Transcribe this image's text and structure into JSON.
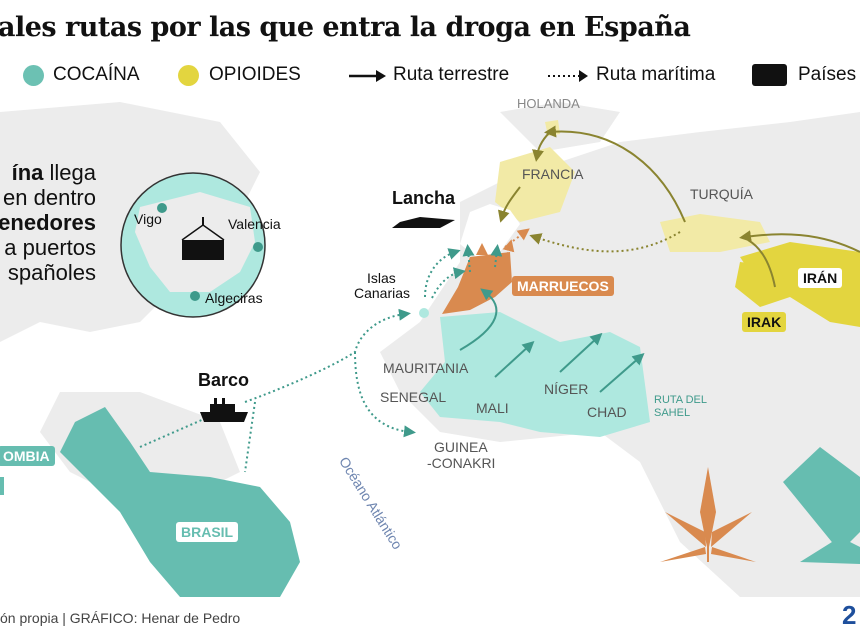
{
  "title": "ales rutas por las que entra la droga en España",
  "legend": {
    "cocaina": {
      "label": "COCAÍNA",
      "color": "#6cc1b3"
    },
    "opioides": {
      "label": "OPIOIDES",
      "color": "#e3d53f"
    },
    "land_route": {
      "label": "Ruta terrestre",
      "icon": "solid-arrow-icon"
    },
    "sea_route": {
      "label": "Ruta marítima",
      "icon": "dotted-arrow-icon"
    },
    "countries": {
      "label": "Países",
      "icon": "black-square-icon"
    }
  },
  "intro": {
    "line1_bold": "ína",
    "line1_rest": " llega",
    "line2": "en dentro",
    "line3_bold": "enedores",
    "line4": "a puertos",
    "line5": "spañoles"
  },
  "inset": {
    "ports": [
      "Vigo",
      "Valencia",
      "Algeciras"
    ],
    "icon": "container-icon"
  },
  "transport": {
    "speedboat": "Lancha",
    "ship": "Barco"
  },
  "places": {
    "holanda": "HOLANDA",
    "francia": "FRANCIA",
    "turquia": "TURQUÍA",
    "iran": "IRÁN",
    "irak": "IRAK",
    "marruecos": "MARRUECOS",
    "canarias_1": "Islas",
    "canarias_2": "Canarias",
    "mauritania": "MAURITANIA",
    "senegal": "SENEGAL",
    "mali": "MALI",
    "niger": "NÍGER",
    "chad": "CHAD",
    "guinea_1": "GUINEA",
    "guinea_2": "-CONAKRI",
    "colombia": "OMBIA",
    "brasil": "BRASIL",
    "sahel_1": "RUTA DEL",
    "sahel_2": "SAHEL",
    "ocean": "Océano Atlántico"
  },
  "colors": {
    "cocaine_dark": "#66bdb0",
    "cocaine_light": "#aee8df",
    "opioid_dark": "#e3d53f",
    "opioid_light": "#f2eaa6",
    "morocco": "#d98a4f",
    "land": "#ececec",
    "opioid_arrow": "#8a8430"
  },
  "footer": "ón propia  |  GRÁFICO: Henar de Pedro",
  "logo": "2"
}
